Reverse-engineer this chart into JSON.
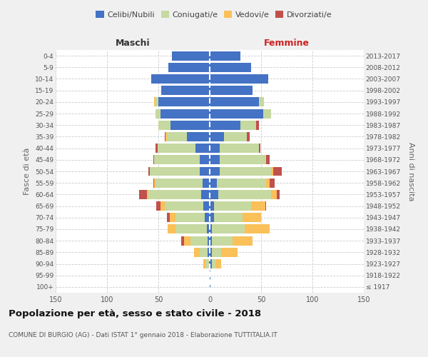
{
  "age_groups": [
    "100+",
    "95-99",
    "90-94",
    "85-89",
    "80-84",
    "75-79",
    "70-74",
    "65-69",
    "60-64",
    "55-59",
    "50-54",
    "45-49",
    "40-44",
    "35-39",
    "30-34",
    "25-29",
    "20-24",
    "15-19",
    "10-14",
    "5-9",
    "0-4"
  ],
  "birth_years": [
    "≤ 1917",
    "1918-1922",
    "1923-1927",
    "1928-1932",
    "1933-1937",
    "1938-1942",
    "1943-1947",
    "1948-1952",
    "1953-1957",
    "1958-1962",
    "1963-1967",
    "1968-1972",
    "1973-1977",
    "1978-1982",
    "1983-1987",
    "1988-1992",
    "1993-1997",
    "1998-2002",
    "2003-2007",
    "2008-2012",
    "2013-2017"
  ],
  "male_celibi": [
    0,
    0,
    1,
    2,
    2,
    3,
    5,
    6,
    8,
    7,
    10,
    10,
    14,
    22,
    38,
    48,
    50,
    47,
    57,
    40,
    37
  ],
  "male_coniugati": [
    0,
    0,
    3,
    8,
    17,
    30,
    28,
    38,
    52,
    46,
    48,
    44,
    37,
    20,
    12,
    5,
    3,
    0,
    0,
    0,
    0
  ],
  "male_vedovi": [
    0,
    0,
    2,
    5,
    6,
    8,
    6,
    4,
    1,
    1,
    0,
    0,
    0,
    1,
    0,
    0,
    1,
    0,
    0,
    0,
    0
  ],
  "male_divorziati": [
    0,
    0,
    0,
    0,
    3,
    0,
    3,
    4,
    8,
    1,
    2,
    1,
    2,
    1,
    0,
    0,
    0,
    0,
    0,
    0,
    0
  ],
  "female_celibi": [
    1,
    1,
    2,
    2,
    2,
    2,
    4,
    4,
    8,
    7,
    10,
    10,
    10,
    14,
    30,
    52,
    48,
    42,
    57,
    40,
    30
  ],
  "female_coniugati": [
    0,
    0,
    4,
    9,
    20,
    32,
    28,
    36,
    52,
    48,
    50,
    45,
    38,
    22,
    15,
    8,
    5,
    0,
    0,
    0,
    0
  ],
  "female_vedovi": [
    0,
    0,
    5,
    16,
    20,
    24,
    18,
    14,
    5,
    3,
    2,
    0,
    0,
    0,
    0,
    0,
    0,
    0,
    0,
    0,
    0
  ],
  "female_divorziati": [
    0,
    0,
    0,
    0,
    0,
    0,
    0,
    1,
    3,
    5,
    8,
    3,
    1,
    3,
    3,
    0,
    0,
    0,
    0,
    0,
    0
  ],
  "colors": {
    "celibi": "#4472C4",
    "coniugati": "#C6D9A0",
    "vedovi": "#FAC059",
    "divorziati": "#C0504D"
  },
  "xlim": 150,
  "title": "Popolazione per età, sesso e stato civile - 2018",
  "subtitle": "COMUNE DI BURGIO (AG) - Dati ISTAT 1° gennaio 2018 - Elaborazione TUTTITALIA.IT",
  "ylabel_left": "Fasce di età",
  "ylabel_right": "Anni di nascita",
  "header_maschi": "Maschi",
  "header_femmine": "Femmine",
  "legend_labels": [
    "Celibi/Nubili",
    "Coniugati/e",
    "Vedovi/e",
    "Divorziati/e"
  ],
  "bg_color": "#f0f0f0",
  "plot_bg": "#ffffff"
}
